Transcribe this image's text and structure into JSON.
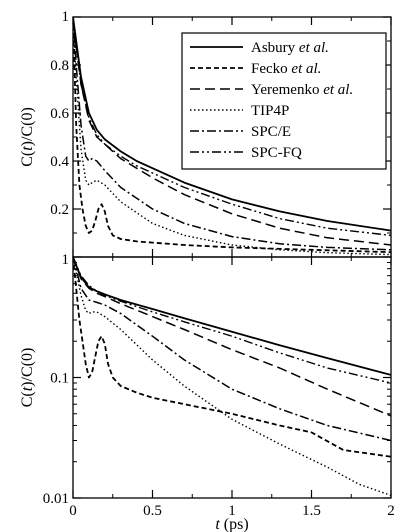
{
  "chart_data": [
    {
      "type": "line",
      "panel": "top",
      "ylabel": "C(t)/C(0)",
      "xlim": [
        0,
        2
      ],
      "ylim": [
        0,
        1
      ],
      "yscale": "linear",
      "grid": false,
      "legend_position": "top-right",
      "yticks": [
        {
          "v": 0.2,
          "label": "0.2"
        },
        {
          "v": 0.4,
          "label": "0.4"
        },
        {
          "v": 0.6,
          "label": "0.6"
        },
        {
          "v": 0.8,
          "label": "0.8"
        },
        {
          "v": 1.0,
          "label": "1"
        }
      ],
      "series": [
        {
          "name": "Asbury et al.",
          "name_plain": "Asbury",
          "name_italic": "et al.",
          "dash": "",
          "width": 1.8,
          "x": [
            0,
            0.02,
            0.05,
            0.1,
            0.15,
            0.2,
            0.3,
            0.4,
            0.5,
            0.7,
            1.0,
            1.3,
            1.6,
            2.0
          ],
          "y": [
            1.0,
            0.9,
            0.75,
            0.6,
            0.53,
            0.49,
            0.44,
            0.4,
            0.37,
            0.31,
            0.24,
            0.19,
            0.15,
            0.11
          ]
        },
        {
          "name": "Fecko et al.",
          "name_plain": "Fecko",
          "name_italic": "et al.",
          "dash": "5,3",
          "width": 1.8,
          "x": [
            0,
            0.02,
            0.04,
            0.06,
            0.08,
            0.1,
            0.12,
            0.14,
            0.16,
            0.18,
            0.2,
            0.22,
            0.25,
            0.3,
            0.4,
            0.5,
            0.7,
            1.0,
            1.5,
            2.0
          ],
          "y": [
            1.0,
            0.55,
            0.3,
            0.2,
            0.13,
            0.1,
            0.11,
            0.15,
            0.2,
            0.22,
            0.19,
            0.13,
            0.09,
            0.075,
            0.065,
            0.06,
            0.05,
            0.04,
            0.03,
            0.02
          ]
        },
        {
          "name": "Yeremenko et al.",
          "name_plain": "Yeremenko",
          "name_italic": "et al.",
          "dash": "10,5",
          "width": 1.5,
          "x": [
            0,
            0.02,
            0.05,
            0.1,
            0.15,
            0.2,
            0.3,
            0.4,
            0.5,
            0.7,
            1.0,
            1.3,
            1.6,
            2.0
          ],
          "y": [
            1.0,
            0.88,
            0.72,
            0.57,
            0.5,
            0.47,
            0.41,
            0.37,
            0.33,
            0.26,
            0.18,
            0.12,
            0.08,
            0.05
          ]
        },
        {
          "name": "TIP4P",
          "name_plain": "TIP4P",
          "name_italic": "",
          "dash": "1.5,2.5",
          "width": 1.4,
          "x": [
            0,
            0.02,
            0.05,
            0.08,
            0.1,
            0.12,
            0.15,
            0.2,
            0.3,
            0.5,
            0.7,
            1.0,
            1.3,
            1.6,
            2.0
          ],
          "y": [
            1.0,
            0.75,
            0.45,
            0.32,
            0.3,
            0.31,
            0.32,
            0.3,
            0.23,
            0.14,
            0.09,
            0.05,
            0.03,
            0.018,
            0.01
          ]
        },
        {
          "name": "SPC/E",
          "name_plain": "SPC/E",
          "name_italic": "",
          "dash": "9,3,2,3",
          "width": 1.5,
          "x": [
            0,
            0.02,
            0.05,
            0.08,
            0.1,
            0.12,
            0.15,
            0.2,
            0.3,
            0.5,
            0.7,
            1.0,
            1.3,
            1.6,
            2.0
          ],
          "y": [
            1.0,
            0.8,
            0.55,
            0.42,
            0.4,
            0.41,
            0.4,
            0.36,
            0.29,
            0.2,
            0.14,
            0.085,
            0.055,
            0.04,
            0.03
          ]
        },
        {
          "name": "SPC-FQ",
          "name_plain": "SPC-FQ",
          "name_italic": "",
          "dash": "9,3,2,3,2,3",
          "width": 1.4,
          "x": [
            0,
            0.02,
            0.05,
            0.1,
            0.15,
            0.2,
            0.3,
            0.4,
            0.5,
            0.7,
            1.0,
            1.3,
            1.6,
            2.0
          ],
          "y": [
            1.0,
            0.87,
            0.72,
            0.58,
            0.51,
            0.47,
            0.42,
            0.38,
            0.35,
            0.29,
            0.22,
            0.16,
            0.12,
            0.09
          ]
        }
      ]
    },
    {
      "type": "line",
      "panel": "bottom",
      "ylabel": "C(t)/C(0)",
      "xlabel": "t (ps)",
      "xlabel_italic": "t",
      "xlabel_rest": " (ps)",
      "xlim": [
        0,
        2
      ],
      "ylim": [
        0.01,
        1
      ],
      "yscale": "log",
      "grid": false,
      "xticks": [
        {
          "v": 0,
          "label": "0"
        },
        {
          "v": 0.5,
          "label": "0.5"
        },
        {
          "v": 1,
          "label": "1"
        },
        {
          "v": 1.5,
          "label": "1.5"
        },
        {
          "v": 2,
          "label": "2"
        }
      ],
      "yticks": [
        {
          "v": 0.01,
          "label": "0.01"
        },
        {
          "v": 0.1,
          "label": "0.1"
        },
        {
          "v": 1,
          "label": "1"
        }
      ],
      "series": [
        {
          "name": "Asbury et al.",
          "dash": "",
          "width": 1.8,
          "x": [
            0,
            0.02,
            0.05,
            0.1,
            0.15,
            0.2,
            0.3,
            0.5,
            0.7,
            1.0,
            1.3,
            1.6,
            2.0
          ],
          "y": [
            1.0,
            0.85,
            0.68,
            0.56,
            0.52,
            0.49,
            0.44,
            0.37,
            0.31,
            0.24,
            0.185,
            0.145,
            0.105
          ]
        },
        {
          "name": "Fecko et al.",
          "dash": "5,3",
          "width": 1.8,
          "x": [
            0,
            0.02,
            0.04,
            0.06,
            0.08,
            0.1,
            0.12,
            0.14,
            0.16,
            0.18,
            0.2,
            0.22,
            0.25,
            0.3,
            0.4,
            0.5,
            0.7,
            1.0,
            1.3,
            1.5,
            1.7,
            2.0
          ],
          "y": [
            1.0,
            0.55,
            0.3,
            0.2,
            0.13,
            0.1,
            0.11,
            0.15,
            0.2,
            0.22,
            0.19,
            0.13,
            0.1,
            0.085,
            0.075,
            0.068,
            0.06,
            0.05,
            0.04,
            0.035,
            0.025,
            0.022
          ]
        },
        {
          "name": "Yeremenko et al.",
          "dash": "10,5",
          "width": 1.5,
          "x": [
            0,
            0.02,
            0.05,
            0.1,
            0.15,
            0.2,
            0.3,
            0.5,
            0.7,
            1.0,
            1.3,
            1.6,
            2.0
          ],
          "y": [
            1.0,
            0.85,
            0.66,
            0.55,
            0.5,
            0.47,
            0.41,
            0.32,
            0.25,
            0.17,
            0.12,
            0.08,
            0.048
          ]
        },
        {
          "name": "TIP4P",
          "dash": "1.5,2.5",
          "width": 1.4,
          "x": [
            0,
            0.02,
            0.05,
            0.08,
            0.1,
            0.12,
            0.15,
            0.2,
            0.3,
            0.5,
            0.7,
            1.0,
            1.3,
            1.6,
            1.8,
            2.0
          ],
          "y": [
            1.0,
            0.75,
            0.48,
            0.36,
            0.34,
            0.35,
            0.35,
            0.32,
            0.25,
            0.14,
            0.085,
            0.045,
            0.028,
            0.018,
            0.013,
            0.0105
          ]
        },
        {
          "name": "SPC/E",
          "dash": "9,3,2,3",
          "width": 1.5,
          "x": [
            0,
            0.02,
            0.05,
            0.1,
            0.15,
            0.2,
            0.3,
            0.5,
            0.7,
            1.0,
            1.3,
            1.6,
            2.0
          ],
          "y": [
            1.0,
            0.8,
            0.55,
            0.44,
            0.42,
            0.4,
            0.34,
            0.22,
            0.14,
            0.08,
            0.055,
            0.04,
            0.03
          ]
        },
        {
          "name": "SPC-FQ",
          "dash": "9,3,2,3,2,3",
          "width": 1.4,
          "x": [
            0,
            0.02,
            0.05,
            0.1,
            0.15,
            0.2,
            0.3,
            0.5,
            0.7,
            1.0,
            1.3,
            1.6,
            2.0
          ],
          "y": [
            1.0,
            0.87,
            0.7,
            0.58,
            0.52,
            0.48,
            0.43,
            0.35,
            0.29,
            0.22,
            0.16,
            0.12,
            0.09
          ]
        }
      ]
    }
  ]
}
